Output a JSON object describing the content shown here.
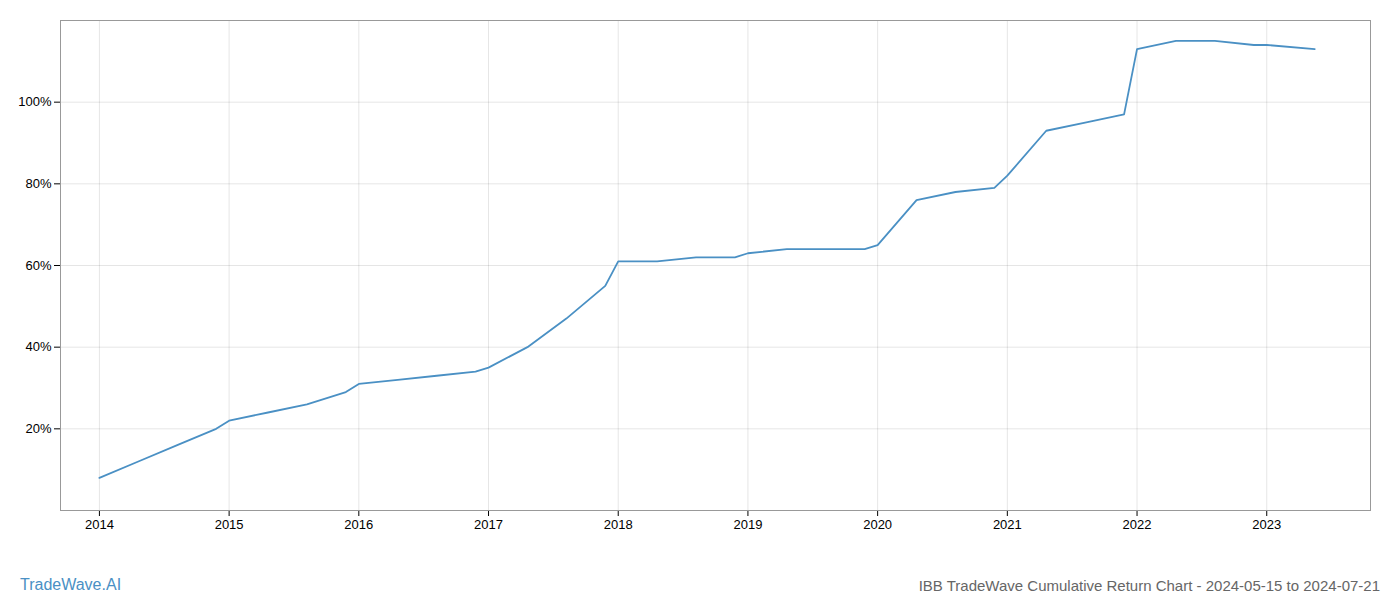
{
  "chart_data": {
    "type": "line",
    "title": "IBB TradeWave Cumulative Return Chart - 2024-05-15 to 2024-07-21",
    "annotations": [
      "TradeWave.AI"
    ],
    "x": [
      2014.0,
      2014.3,
      2014.6,
      2014.9,
      2015.0,
      2015.3,
      2015.6,
      2015.9,
      2016.0,
      2016.3,
      2016.6,
      2016.9,
      2017.0,
      2017.3,
      2017.6,
      2017.9,
      2018.0,
      2018.3,
      2018.6,
      2018.9,
      2019.0,
      2019.3,
      2019.6,
      2019.9,
      2020.0,
      2020.3,
      2020.6,
      2020.9,
      2021.0,
      2021.3,
      2021.6,
      2021.9,
      2022.0,
      2022.3,
      2022.6,
      2022.9,
      2023.0,
      2023.37
    ],
    "values": [
      8,
      12,
      16,
      20,
      22,
      24,
      26,
      29,
      31,
      32,
      33,
      34,
      35,
      40,
      47,
      55,
      61,
      61,
      62,
      62,
      63,
      64,
      64,
      64,
      65,
      76,
      78,
      79,
      82,
      93,
      95,
      97,
      113,
      115,
      115,
      114,
      114,
      113
    ],
    "color": "#4a90c4",
    "xlim": [
      2013.7,
      2023.8
    ],
    "ylim": [
      0,
      120
    ],
    "xticks": [
      2014,
      2015,
      2016,
      2017,
      2018,
      2019,
      2020,
      2021,
      2022,
      2023
    ],
    "yticks": [
      {
        "value": 20,
        "label": "20%"
      },
      {
        "value": 40,
        "label": "40%"
      },
      {
        "value": 60,
        "label": "60%"
      },
      {
        "value": 80,
        "label": "80%"
      },
      {
        "value": 100,
        "label": "100%"
      }
    ],
    "grid": true
  }
}
